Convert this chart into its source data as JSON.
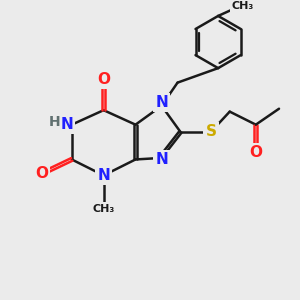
{
  "bg_color": "#ebebeb",
  "bond_color": "#1a1a1a",
  "N_color": "#2020ff",
  "O_color": "#ff2020",
  "S_color": "#ccaa00",
  "H_color": "#607070",
  "line_width": 1.8,
  "font_size_atom": 11,
  "font_size_small": 9,
  "xlim": [
    0,
    10
  ],
  "ylim": [
    0,
    10
  ]
}
